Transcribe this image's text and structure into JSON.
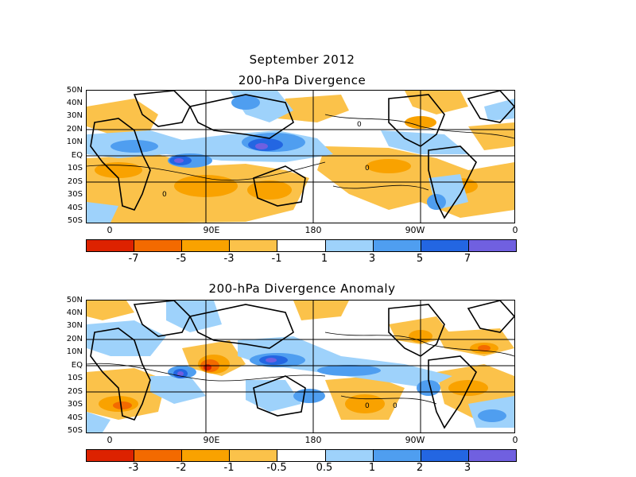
{
  "figure": {
    "title": "September 2012",
    "panel_top_title": "200-hPa Divergence",
    "panel_bottom_title": "200-hPa Divergence Anomaly"
  },
  "axes": {
    "lat_labels": [
      "50N",
      "40N",
      "30N",
      "20N",
      "10N",
      "EQ",
      "10S",
      "20S",
      "30S",
      "40S",
      "50S"
    ],
    "lon_labels": [
      "0",
      "90E",
      "180",
      "90W",
      "0"
    ]
  },
  "colorbar_top": {
    "labels": [
      "-7",
      "-5",
      "-3",
      "-1",
      "1",
      "3",
      "5",
      "7"
    ],
    "colors": [
      "#dd2200",
      "#f36a00",
      "#f9a200",
      "#fbc24a",
      "#ffffff",
      "#9ed2fb",
      "#4f9ef0",
      "#2366e2",
      "#7060e0"
    ]
  },
  "colorbar_bottom": {
    "labels": [
      "-3",
      "-2",
      "-1",
      "-0.5",
      "0.5",
      "1",
      "2",
      "3"
    ],
    "colors": [
      "#dd2200",
      "#f36a00",
      "#f9a200",
      "#fbc24a",
      "#ffffff",
      "#9ed2fb",
      "#4f9ef0",
      "#2366e2",
      "#7060e0"
    ]
  },
  "contour_label": "0"
}
